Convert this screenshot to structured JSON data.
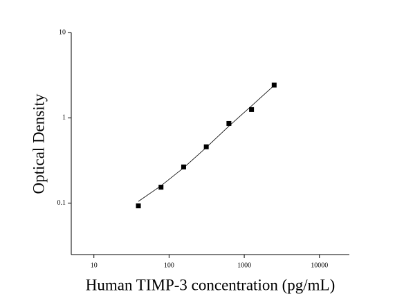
{
  "chart_data": {
    "type": "scatter",
    "x_label": "Human TIMP-3 concentration (pg/mL)",
    "y_label": "Optical Density",
    "log_x": true,
    "log_y": true,
    "xlim": [
      5,
      25000
    ],
    "xticks": [
      10,
      100,
      1000,
      10000
    ],
    "ylim": [
      0.025,
      10
    ],
    "yticks": [
      0.1,
      1,
      10
    ],
    "series": [
      {
        "mode": "markers",
        "color": "#000000",
        "x": [
          39.06,
          78.13,
          156.25,
          312.5,
          625,
          1250,
          2500
        ],
        "values": [
          0.093,
          0.154,
          0.266,
          0.458,
          0.86,
          1.25,
          2.42
        ]
      },
      {
        "mode": "line",
        "color": "#000000",
        "x": [
          39.06,
          78.13,
          156.25,
          312.5,
          625,
          1250,
          2500
        ],
        "values": [
          0.105,
          0.16,
          0.26,
          0.45,
          0.8,
          1.38,
          2.4
        ]
      }
    ]
  }
}
